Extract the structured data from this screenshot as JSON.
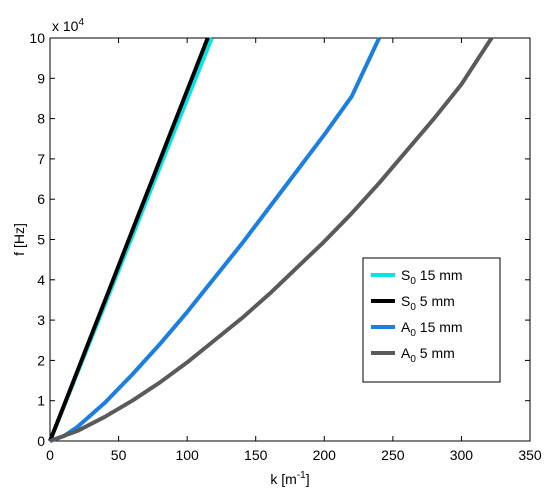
{
  "chart_data": {
    "type": "line",
    "xlabel": "k [m",
    "xlabel_sup": "-1",
    "xlabel_suffix": "]",
    "ylabel": "f [Hz]",
    "xlim": [
      0,
      350
    ],
    "ylim": [
      0,
      10
    ],
    "x_ticks": [
      0,
      50,
      100,
      150,
      200,
      250,
      300,
      350
    ],
    "y_ticks": [
      0,
      1,
      2,
      3,
      4,
      5,
      6,
      7,
      8,
      9,
      10
    ],
    "y_exponent_base": "x 10",
    "y_exponent_power": "4",
    "grid": false,
    "legend_position": "lower-right",
    "series": [
      {
        "name_base": "S",
        "name_sub": "0",
        "name_rest": " 15 mm",
        "color": "#00e5e5",
        "x": [
          0,
          15,
          30,
          45,
          60,
          75,
          90,
          105,
          118
        ],
        "y": [
          0,
          1.27,
          2.54,
          3.81,
          5.08,
          6.36,
          7.63,
          8.9,
          10.0
        ]
      },
      {
        "name_base": "S",
        "name_sub": "0",
        "name_rest": " 5 mm",
        "color": "#000000",
        "x": [
          0,
          15,
          30,
          45,
          60,
          75,
          90,
          105,
          115
        ],
        "y": [
          0,
          1.3,
          2.61,
          3.91,
          5.22,
          6.52,
          7.83,
          9.13,
          10.0
        ]
      },
      {
        "name_base": "A",
        "name_sub": "0",
        "name_rest": " 15 mm",
        "color": "#1a7fe0",
        "x": [
          0,
          10,
          20,
          40,
          60,
          80,
          100,
          120,
          140,
          160,
          180,
          200,
          220,
          240
        ],
        "y": [
          0,
          0.12,
          0.35,
          0.95,
          1.65,
          2.4,
          3.2,
          4.05,
          4.9,
          5.8,
          6.7,
          7.6,
          8.55,
          10.0
        ]
      },
      {
        "name_base": "A",
        "name_sub": "0",
        "name_rest": " 5 mm",
        "color": "#5a5a5a",
        "x": [
          0,
          20,
          40,
          60,
          80,
          100,
          120,
          140,
          160,
          180,
          200,
          220,
          240,
          260,
          280,
          300,
          322
        ],
        "y": [
          0,
          0.25,
          0.6,
          1.0,
          1.45,
          1.95,
          2.5,
          3.05,
          3.65,
          4.3,
          4.95,
          5.65,
          6.4,
          7.2,
          8.0,
          8.85,
          10.0
        ]
      }
    ]
  }
}
